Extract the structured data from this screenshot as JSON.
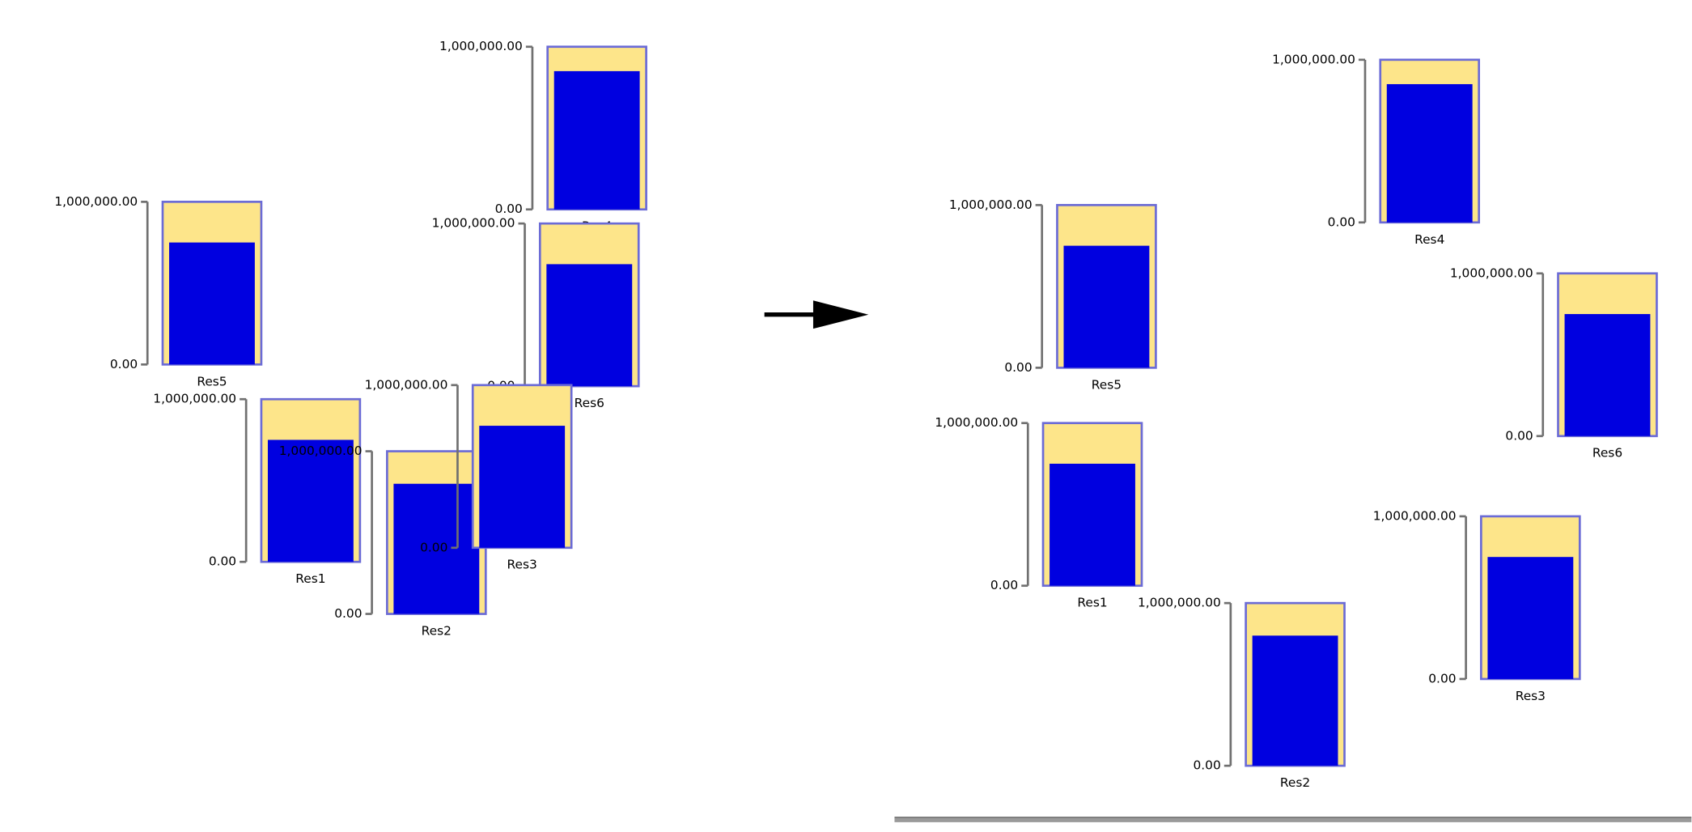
{
  "scale": {
    "ylim": [
      0,
      1000000
    ],
    "yticks": [
      {
        "value": 0,
        "label": "0.00"
      },
      {
        "value": 1000000,
        "label": "1,000,000.00"
      }
    ]
  },
  "gauges": [
    {
      "name": "Res1",
      "value": 750000
    },
    {
      "name": "Res2",
      "value": 800000
    },
    {
      "name": "Res3",
      "value": 750000
    },
    {
      "name": "Res4",
      "value": 850000
    },
    {
      "name": "Res5",
      "value": 750000
    },
    {
      "name": "Res6",
      "value": 750000
    }
  ]
}
